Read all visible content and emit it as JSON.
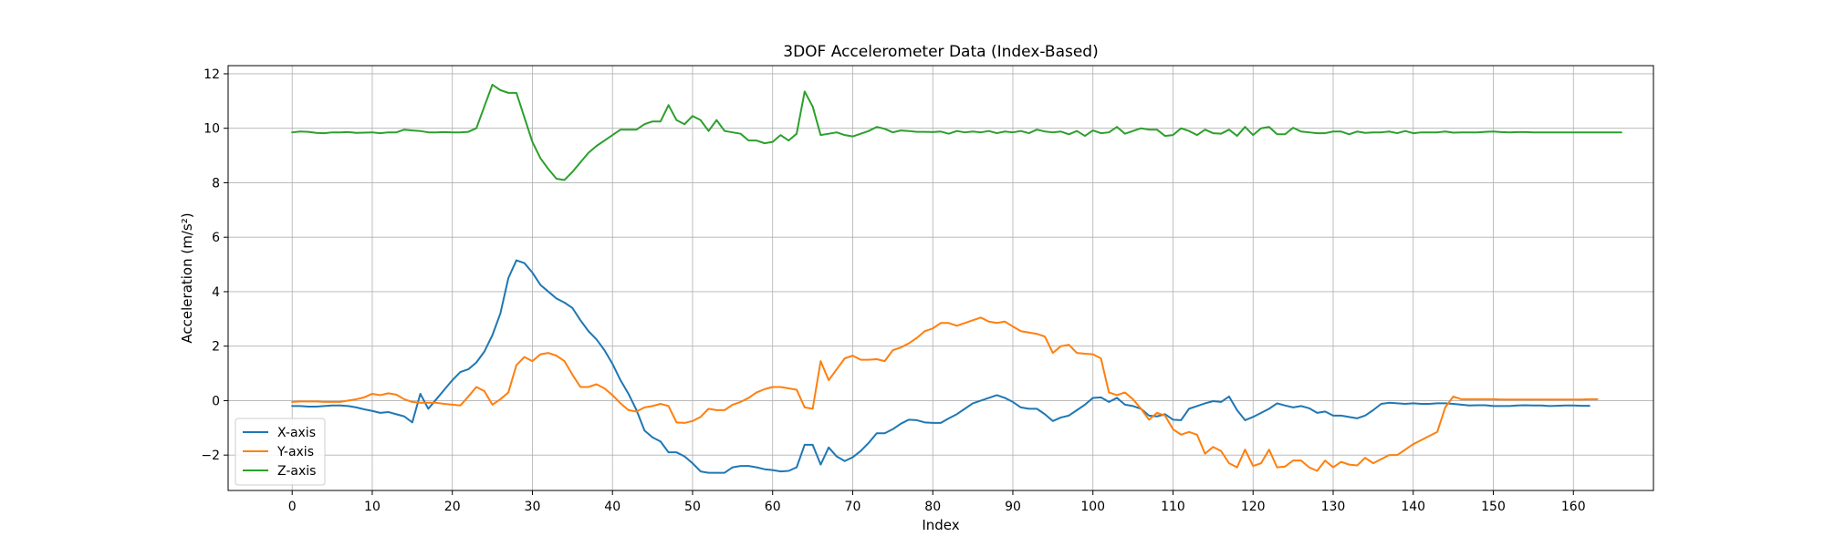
{
  "chart_data": {
    "type": "line",
    "title": "3DOF Accelerometer Data (Index-Based)",
    "xlabel": "Index",
    "ylabel": "Acceleration (m/s²)",
    "xlim": [
      -8,
      170
    ],
    "ylim": [
      -3.3,
      12.3
    ],
    "xticks": [
      0,
      10,
      20,
      30,
      40,
      50,
      60,
      70,
      80,
      90,
      100,
      110,
      120,
      130,
      140,
      150,
      160
    ],
    "yticks": [
      -2,
      0,
      2,
      4,
      6,
      8,
      10,
      12
    ],
    "grid": true,
    "legend_position": "lower-left",
    "series": [
      {
        "name": "X-axis",
        "color": "#1f77b4",
        "values": [
          -0.2,
          -0.2,
          -0.22,
          -0.22,
          -0.2,
          -0.18,
          -0.18,
          -0.2,
          -0.25,
          -0.32,
          -0.38,
          -0.45,
          -0.42,
          -0.5,
          -0.58,
          -0.8,
          0.25,
          -0.3,
          0.05,
          0.4,
          0.75,
          1.05,
          1.15,
          1.4,
          1.8,
          2.4,
          3.2,
          4.5,
          5.15,
          5.05,
          4.7,
          4.25,
          4.0,
          3.75,
          3.6,
          3.4,
          2.95,
          2.55,
          2.25,
          1.85,
          1.35,
          0.75,
          0.25,
          -0.35,
          -1.1,
          -1.35,
          -1.5,
          -1.9,
          -1.9,
          -2.05,
          -2.3,
          -2.6,
          -2.65,
          -2.65,
          -2.65,
          -2.45,
          -2.4,
          -2.4,
          -2.45,
          -2.52,
          -2.55,
          -2.6,
          -2.58,
          -2.45,
          -1.62,
          -1.62,
          -2.35,
          -1.72,
          -2.05,
          -2.22,
          -2.08,
          -1.85,
          -1.55,
          -1.2,
          -1.2,
          -1.05,
          -0.85,
          -0.7,
          -0.72,
          -0.8,
          -0.82,
          -0.82,
          -0.65,
          -0.5,
          -0.3,
          -0.1,
          0.0,
          0.1,
          0.2,
          0.1,
          -0.05,
          -0.25,
          -0.3,
          -0.3,
          -0.5,
          -0.75,
          -0.62,
          -0.55,
          -0.35,
          -0.15,
          0.1,
          0.12,
          -0.05,
          0.1,
          -0.15,
          -0.2,
          -0.3,
          -0.55,
          -0.58,
          -0.5,
          -0.7,
          -0.72,
          -0.3,
          -0.2,
          -0.1,
          -0.02,
          -0.05,
          0.15,
          -0.35,
          -0.72,
          -0.6,
          -0.45,
          -0.3,
          -0.1,
          -0.18,
          -0.25,
          -0.2,
          -0.28,
          -0.45,
          -0.4,
          -0.55,
          -0.55,
          -0.6,
          -0.65,
          -0.55,
          -0.35,
          -0.12,
          -0.08,
          -0.1,
          -0.12,
          -0.1,
          -0.12,
          -0.12,
          -0.1,
          -0.1,
          -0.12,
          -0.15,
          -0.18,
          -0.17,
          -0.17,
          -0.2,
          -0.2,
          -0.2,
          -0.18,
          -0.17,
          -0.18,
          -0.18,
          -0.2,
          -0.19,
          -0.18,
          -0.18,
          -0.19,
          -0.19
        ]
      },
      {
        "name": "Y-axis",
        "color": "#ff7f0e",
        "values": [
          -0.05,
          -0.03,
          -0.03,
          -0.03,
          -0.05,
          -0.05,
          -0.05,
          0.0,
          0.05,
          0.12,
          0.25,
          0.2,
          0.27,
          0.22,
          0.05,
          -0.05,
          -0.08,
          -0.08,
          -0.08,
          -0.12,
          -0.15,
          -0.18,
          0.15,
          0.5,
          0.35,
          -0.15,
          0.05,
          0.3,
          1.3,
          1.6,
          1.45,
          1.7,
          1.75,
          1.65,
          1.45,
          0.95,
          0.5,
          0.5,
          0.6,
          0.45,
          0.2,
          -0.1,
          -0.35,
          -0.4,
          -0.25,
          -0.2,
          -0.12,
          -0.2,
          -0.8,
          -0.82,
          -0.75,
          -0.6,
          -0.3,
          -0.35,
          -0.35,
          -0.15,
          -0.05,
          0.1,
          0.3,
          0.42,
          0.5,
          0.5,
          0.45,
          0.4,
          -0.25,
          -0.3,
          1.45,
          0.75,
          1.15,
          1.55,
          1.65,
          1.5,
          1.5,
          1.52,
          1.45,
          1.85,
          1.95,
          2.1,
          2.3,
          2.55,
          2.65,
          2.85,
          2.85,
          2.75,
          2.85,
          2.95,
          3.05,
          2.9,
          2.85,
          2.9,
          2.72,
          2.55,
          2.5,
          2.45,
          2.35,
          1.75,
          2.0,
          2.05,
          1.75,
          1.72,
          1.7,
          1.55,
          0.3,
          0.2,
          0.3,
          0.05,
          -0.3,
          -0.7,
          -0.45,
          -0.55,
          -1.05,
          -1.25,
          -1.15,
          -1.25,
          -1.95,
          -1.7,
          -1.85,
          -2.3,
          -2.45,
          -1.8,
          -2.4,
          -2.3,
          -1.8,
          -2.45,
          -2.42,
          -2.2,
          -2.2,
          -2.45,
          -2.58,
          -2.2,
          -2.45,
          -2.25,
          -2.35,
          -2.38,
          -2.1,
          -2.3,
          -2.15,
          -2.0,
          -2.0,
          -1.8,
          -1.6,
          -1.45,
          -1.3,
          -1.15,
          -0.25,
          0.15,
          0.05,
          0.05,
          0.05,
          0.05,
          0.05,
          0.04,
          0.04,
          0.04,
          0.04,
          0.04,
          0.04,
          0.04,
          0.04,
          0.04,
          0.04,
          0.04,
          0.05,
          0.05
        ]
      },
      {
        "name": "Z-axis",
        "color": "#2ca02c",
        "values": [
          9.85,
          9.88,
          9.87,
          9.83,
          9.82,
          9.85,
          9.85,
          9.86,
          9.83,
          9.84,
          9.85,
          9.82,
          9.85,
          9.85,
          9.95,
          9.92,
          9.9,
          9.85,
          9.85,
          9.86,
          9.85,
          9.85,
          9.87,
          10.0,
          10.8,
          11.6,
          11.4,
          11.3,
          11.3,
          10.4,
          9.5,
          8.9,
          8.5,
          8.15,
          8.1,
          8.4,
          8.75,
          9.1,
          9.35,
          9.55,
          9.75,
          9.95,
          9.95,
          9.95,
          10.15,
          10.25,
          10.25,
          10.85,
          10.3,
          10.15,
          10.45,
          10.3,
          9.9,
          10.3,
          9.9,
          9.85,
          9.8,
          9.55,
          9.55,
          9.45,
          9.5,
          9.75,
          9.55,
          9.8,
          11.35,
          10.8,
          9.75,
          9.8,
          9.85,
          9.75,
          9.7,
          9.8,
          9.9,
          10.05,
          9.98,
          9.85,
          9.92,
          9.9,
          9.87,
          9.87,
          9.86,
          9.88,
          9.8,
          9.9,
          9.85,
          9.88,
          9.85,
          9.9,
          9.82,
          9.88,
          9.85,
          9.9,
          9.82,
          9.95,
          9.88,
          9.85,
          9.88,
          9.78,
          9.9,
          9.72,
          9.92,
          9.82,
          9.85,
          10.05,
          9.8,
          9.9,
          10.0,
          9.95,
          9.95,
          9.72,
          9.75,
          10.0,
          9.9,
          9.75,
          9.95,
          9.82,
          9.8,
          9.95,
          9.72,
          10.05,
          9.75,
          10.0,
          10.05,
          9.78,
          9.78,
          10.02,
          9.88,
          9.85,
          9.82,
          9.82,
          9.88,
          9.88,
          9.78,
          9.88,
          9.83,
          9.85,
          9.85,
          9.88,
          9.82,
          9.9,
          9.82,
          9.85,
          9.85,
          9.85,
          9.88,
          9.84,
          9.85,
          9.85,
          9.85,
          9.87,
          9.88,
          9.86,
          9.85,
          9.86,
          9.86,
          9.85,
          9.85,
          9.85,
          9.85,
          9.85,
          9.85,
          9.85,
          9.85,
          9.85,
          9.85,
          9.85,
          9.85
        ]
      }
    ]
  }
}
